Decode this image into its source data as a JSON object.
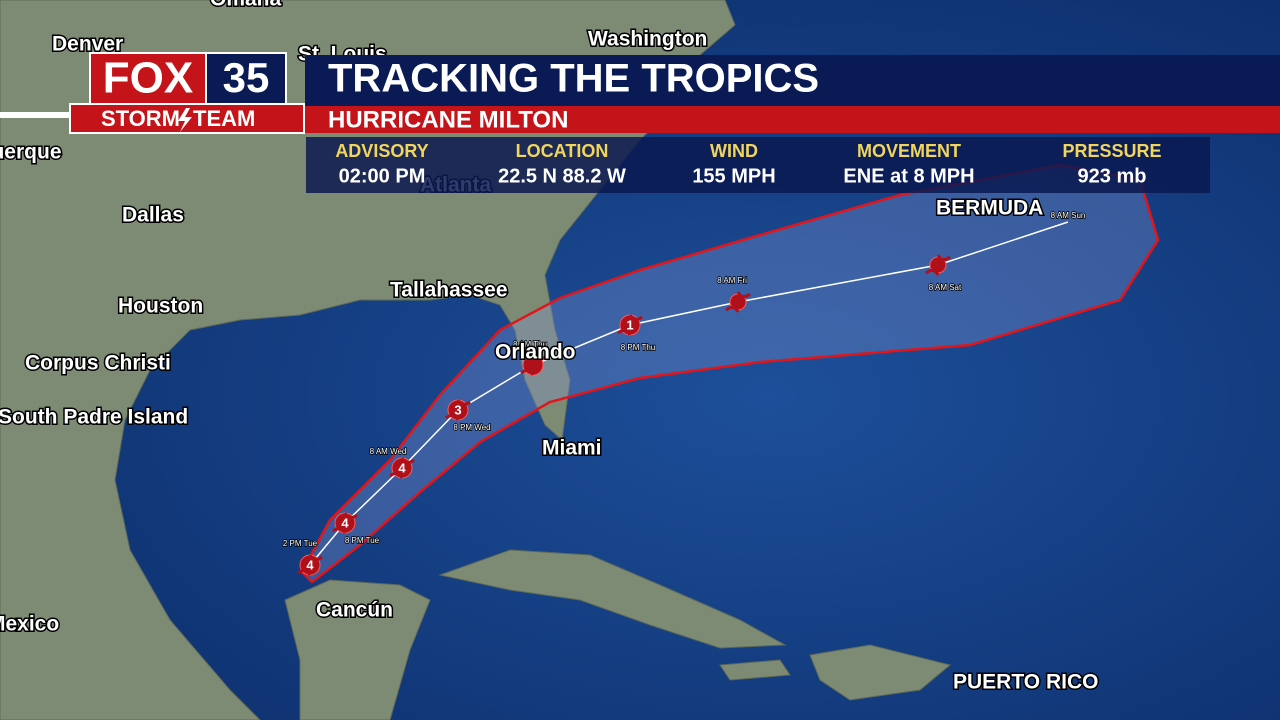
{
  "logo": {
    "brand": "FOX",
    "number": "35",
    "team_left": "STORM",
    "team_right": "TEAM"
  },
  "header": {
    "title": "TRACKING THE TROPICS",
    "subtitle": "HURRICANE MILTON"
  },
  "advisory": {
    "columns": [
      {
        "label": "ADVISORY",
        "value": "02:00 PM"
      },
      {
        "label": "LOCATION",
        "value": "22.5 N 88.2 W"
      },
      {
        "label": "WIND",
        "value": "155 MPH"
      },
      {
        "label": "MOVEMENT",
        "value": "ENE at 8 MPH"
      },
      {
        "label": "PRESSURE",
        "value": "923 mb"
      }
    ]
  },
  "map": {
    "cities": [
      "Omaha",
      "Denver",
      "St. Louis",
      "Washington",
      "Albuquerque",
      "Dallas",
      "Atlanta",
      "Houston",
      "Tallahassee",
      "Corpus Christi",
      "Orlando",
      "South Padre Island",
      "Miami",
      "Cancún",
      "Mexico",
      "BERMUDA",
      "PUERTO RICO"
    ],
    "track": [
      {
        "time": "2 PM Tue",
        "category": "4"
      },
      {
        "time": "8 PM Tue",
        "category": "4"
      },
      {
        "time": "8 AM Wed",
        "category": "4"
      },
      {
        "time": "8 PM Wed",
        "category": "3"
      },
      {
        "time": "8 AM Thu"
      },
      {
        "time": "8 PM Thu",
        "category": "1"
      },
      {
        "time": "8 AM Fri"
      },
      {
        "time": "8 AM Sat"
      },
      {
        "time": "8 AM Sun"
      }
    ]
  }
}
